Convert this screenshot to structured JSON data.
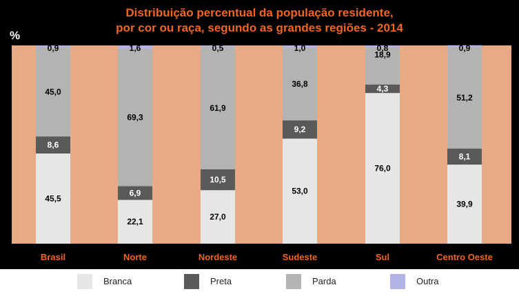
{
  "chart_data": {
    "type": "bar",
    "stacked": true,
    "title": [
      "Distribuição percentual da população residente,",
      "por cor ou raça, segundo as grandes regiões - 2014"
    ],
    "ylabel": "%",
    "ylim": [
      0,
      100
    ],
    "categories": [
      "Brasil",
      "Norte",
      "Nordeste",
      "Sudeste",
      "Sul",
      "Centro Oeste"
    ],
    "series": [
      {
        "name": "Branca",
        "color": "#e6e6e6",
        "values": [
          45.5,
          22.1,
          27.0,
          53.0,
          76.0,
          39.9
        ],
        "labels": [
          "45,5",
          "22,1",
          "27,0",
          "53,0",
          "76,0",
          "39,9"
        ]
      },
      {
        "name": "Preta",
        "color": "#595959",
        "values": [
          8.6,
          6.9,
          10.5,
          9.2,
          4.3,
          8.1
        ],
        "labels": [
          "8,6",
          "6,9",
          "10,5",
          "9,2",
          "4,3",
          "8,1"
        ]
      },
      {
        "name": "Parda",
        "color": "#b3b3b3",
        "values": [
          45.0,
          69.3,
          61.9,
          36.8,
          18.9,
          51.2
        ],
        "labels": [
          "45,0",
          "69,3",
          "61,9",
          "36,8",
          "18,9",
          "51,2"
        ]
      },
      {
        "name": "Outra",
        "color": "#b3b3e6",
        "values": [
          0.9,
          1.6,
          0.5,
          1.0,
          0.8,
          0.9
        ],
        "labels": [
          "0,9",
          "1,6",
          "0,5",
          "1,0",
          "0,8",
          "0,9"
        ]
      }
    ],
    "legend": "bottom"
  },
  "colors": {
    "background": "#000000",
    "plot_area": "#e8aa85",
    "title": "#f26522",
    "category_label": "#f26522"
  }
}
